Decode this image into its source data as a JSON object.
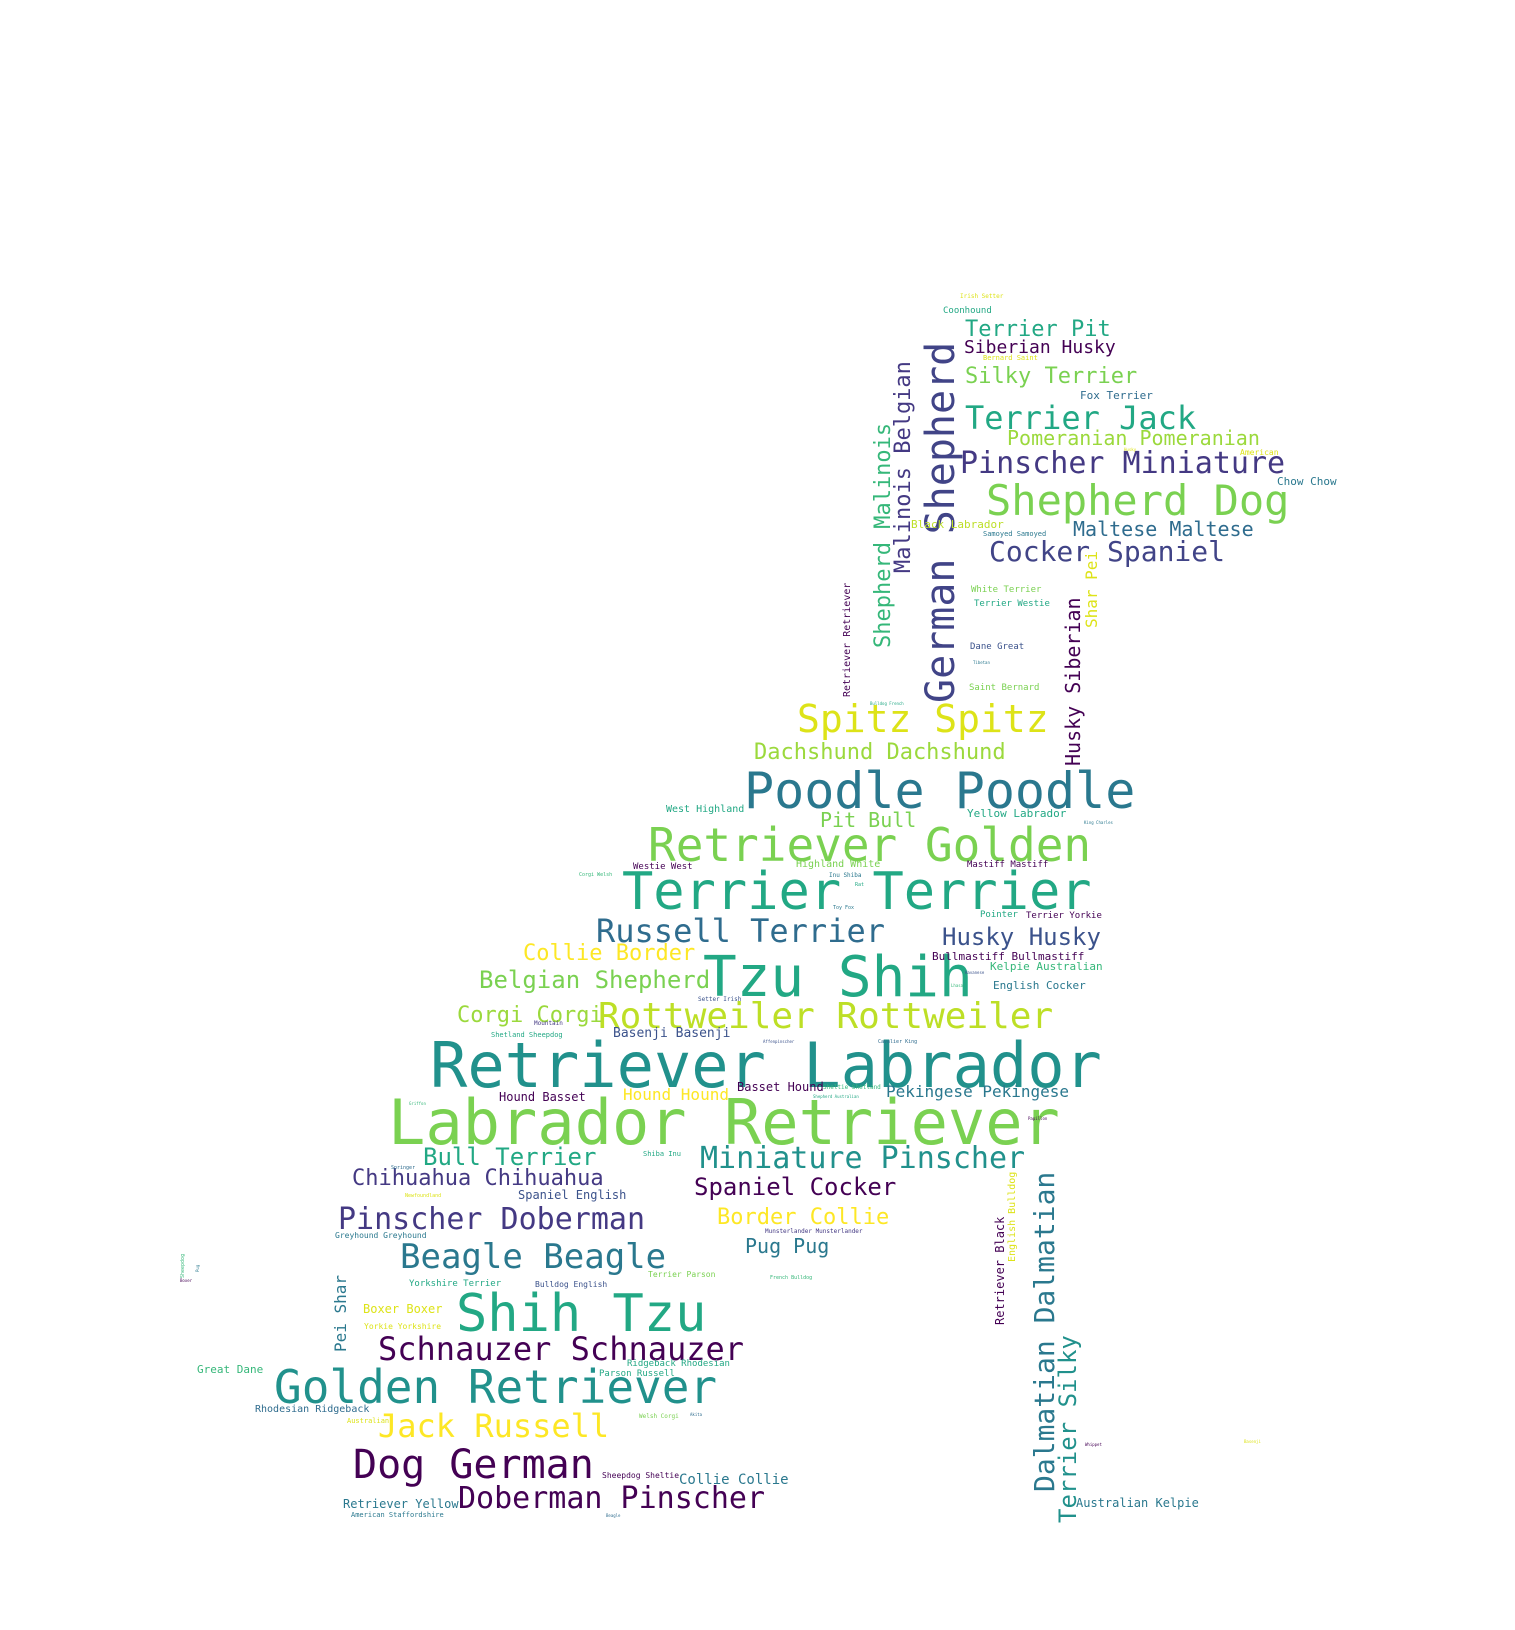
{
  "palette": {
    "dark_purple": "#440154",
    "indigo": "#482878",
    "navy": "#3e4a89",
    "steel": "#31688e",
    "teal": "#26828e",
    "sea": "#1f9e89",
    "green": "#35b779",
    "lime_green": "#6ece58",
    "light_lime": "#b5de2b",
    "yellow": "#fde725"
  },
  "words": [
    {
      "text": "Retriever Labrador",
      "color": "#21918c"
    },
    {
      "text": "Labrador Retriever",
      "color": "#7ad151"
    },
    {
      "text": "Tzu Shih",
      "color": "#22a884"
    },
    {
      "text": "Terrier Terrier",
      "color": "#22a884"
    },
    {
      "text": "Poodle Poodle",
      "color": "#2a788e"
    },
    {
      "text": "Retriever Golden",
      "color": "#7ad151"
    },
    {
      "text": "German Shepherd",
      "color": "#414487"
    },
    {
      "text": "Shih Tzu",
      "color": "#22a884"
    },
    {
      "text": "Golden Retriever",
      "color": "#21918c"
    },
    {
      "text": "Dog German",
      "color": "#440154"
    },
    {
      "text": "Rottweiler Rottweiler",
      "color": "#bddf26"
    },
    {
      "text": "Shepherd Dog",
      "color": "#7ad151"
    },
    {
      "text": "Spitz Spitz",
      "color": "#dde318"
    },
    {
      "text": "Russell Terrier",
      "color": "#2f6c8e"
    },
    {
      "text": "Jack Russell",
      "color": "#fde725"
    },
    {
      "text": "Schnauzer Schnauzer",
      "color": "#440154"
    },
    {
      "text": "Doberman Pinscher",
      "color": "#440154"
    },
    {
      "text": "Beagle Beagle",
      "color": "#2a788e"
    },
    {
      "text": "Pinscher Doberman",
      "color": "#443983"
    },
    {
      "text": "Miniature Pinscher",
      "color": "#21918c"
    },
    {
      "text": "Pinscher Miniature",
      "color": "#443983"
    },
    {
      "text": "Terrier Jack",
      "color": "#22a884"
    },
    {
      "text": "Dalmatian Dalmatian",
      "color": "#2a788e"
    },
    {
      "text": "Cocker Spaniel",
      "color": "#414487"
    },
    {
      "text": "Belgian Shepherd",
      "color": "#7ad151"
    },
    {
      "text": "Dachshund Dachshund",
      "color": "#9bd93c"
    },
    {
      "text": "Collie Border",
      "color": "#fde725"
    },
    {
      "text": "Husky Husky",
      "color": "#3b528b"
    },
    {
      "text": "Spaniel Cocker",
      "color": "#440154"
    },
    {
      "text": "Chihuahua Chihuahua",
      "color": "#443983"
    },
    {
      "text": "Bull Terrier",
      "color": "#22a884"
    },
    {
      "text": "Corgi Corgi",
      "color": "#9bd93c"
    },
    {
      "text": "Border Collie",
      "color": "#fde725"
    },
    {
      "text": "Malinois Belgian",
      "color": "#443983"
    },
    {
      "text": "Shepherd Malinois",
      "color": "#35b779"
    },
    {
      "text": "Terrier Silky",
      "color": "#21918c"
    },
    {
      "text": "Husky Siberian",
      "color": "#440154"
    },
    {
      "text": "Silky Terrier",
      "color": "#7ad151"
    },
    {
      "text": "Pomeranian Pomeranian",
      "color": "#9bd93c"
    },
    {
      "text": "Maltese Maltese",
      "color": "#2f6c8e"
    },
    {
      "text": "Terrier Pit",
      "color": "#22a884"
    },
    {
      "text": "Siberian Husky",
      "color": "#440154"
    },
    {
      "text": "Pug Pug",
      "color": "#2a788e"
    },
    {
      "text": "Pit Bull",
      "color": "#7ad151"
    },
    {
      "text": "Pekingese Pekingese",
      "color": "#2a788e"
    },
    {
      "text": "Hound Hound",
      "color": "#fde725"
    },
    {
      "text": "Pei Shar",
      "color": "#2a788e"
    },
    {
      "text": "Shar Pei",
      "color": "#dde318"
    },
    {
      "text": "Collie Collie",
      "color": "#2a788e"
    },
    {
      "text": "Basenji Basenji",
      "color": "#3b528b"
    },
    {
      "text": "Retriever Black",
      "color": "#440154"
    },
    {
      "text": "English Bulldog",
      "color": "#dde318"
    },
    {
      "text": "Spaniel English",
      "color": "#3b528b"
    },
    {
      "text": "Hound Basset",
      "color": "#440154"
    },
    {
      "text": "Basset Hound",
      "color": "#440154"
    },
    {
      "text": "Boxer Boxer",
      "color": "#dde318"
    },
    {
      "text": "Retriever Yellow",
      "color": "#2a788e"
    },
    {
      "text": "Australian Kelpie",
      "color": "#2a788e"
    },
    {
      "text": "Great Dane",
      "color": "#35b779"
    },
    {
      "text": "Rhodesian Ridgeback",
      "color": "#2f6c8e"
    },
    {
      "text": "Retriever Retriever",
      "color": "#440154"
    },
    {
      "text": "Yellow Labrador",
      "color": "#22a884"
    },
    {
      "text": "English Cocker",
      "color": "#2a788e"
    },
    {
      "text": "Kelpie Australian",
      "color": "#35b779"
    },
    {
      "text": "Bullmastiff Bullmastiff",
      "color": "#440154"
    },
    {
      "text": "Chow Chow",
      "color": "#2a788e"
    },
    {
      "text": "Fox Terrier",
      "color": "#2f6c8e"
    },
    {
      "text": "West Highland",
      "color": "#22a884"
    },
    {
      "text": "Coonhound",
      "color": "#22a884"
    },
    {
      "text": "Black Labrador",
      "color": "#bddf26"
    },
    {
      "text": "Dane Great",
      "color": "#3b528b"
    },
    {
      "text": "Saint Bernard",
      "color": "#7ad151"
    },
    {
      "text": "White Terrier",
      "color": "#7ad151"
    },
    {
      "text": "Terrier Westie",
      "color": "#22a884"
    },
    {
      "text": "Highland White",
      "color": "#7ad151"
    },
    {
      "text": "Mastiff Mastiff",
      "color": "#440154"
    },
    {
      "text": "Terrier Yorkie",
      "color": "#440154"
    },
    {
      "text": "Westie West",
      "color": "#440154"
    },
    {
      "text": "Pointer",
      "color": "#22a884"
    },
    {
      "text": "Greyhound Greyhound",
      "color": "#2a788e"
    },
    {
      "text": "Terrier Parson",
      "color": "#7ad151"
    },
    {
      "text": "Yorkshire Terrier",
      "color": "#22a884"
    },
    {
      "text": "Bulldog English",
      "color": "#3b528b"
    },
    {
      "text": "Yorkie Yorkshire",
      "color": "#dde318"
    },
    {
      "text": "Ridgeback Rhodesian",
      "color": "#22a884"
    },
    {
      "text": "Parson Russell",
      "color": "#22a884"
    },
    {
      "text": "Sheepdog Sheltie",
      "color": "#440154"
    },
    {
      "text": "American Staffordshire",
      "color": "#2a788e"
    },
    {
      "text": "Shetland Sheepdog",
      "color": "#22a884"
    },
    {
      "text": "Shiba Inu",
      "color": "#22a884"
    },
    {
      "text": "Munsterlander Munsterlander",
      "color": "#443983"
    },
    {
      "text": "Mountain",
      "color": "#443983"
    },
    {
      "text": "Samoyed Samoyed",
      "color": "#2a788e"
    },
    {
      "text": "Bernard Saint",
      "color": "#dde318"
    },
    {
      "text": "Irish Setter",
      "color": "#dde318"
    },
    {
      "text": "American",
      "color": "#dde318"
    },
    {
      "text": "Welsh Corgi",
      "color": "#7ad151"
    },
    {
      "text": "Australian",
      "color": "#dde318"
    },
    {
      "text": "Inu Shiba",
      "color": "#2a788e"
    },
    {
      "text": "Corgi Welsh",
      "color": "#35b779"
    },
    {
      "text": "Sheltie Shetland",
      "color": "#35b779"
    },
    {
      "text": "Setter Irish",
      "color": "#3b528b"
    },
    {
      "text": "Shepherd Australian",
      "color": "#22a884"
    },
    {
      "text": "Sheepdog",
      "color": "#35b779"
    },
    {
      "text": "Springer",
      "color": "#2f6c8e"
    },
    {
      "text": "Newfoundland",
      "color": "#dde318"
    },
    {
      "text": "Griffon",
      "color": "#35b779"
    },
    {
      "text": "French Bulldog",
      "color": "#35b779"
    },
    {
      "text": "Bulldog French",
      "color": "#22a884"
    },
    {
      "text": "Rat",
      "color": "#22a884"
    },
    {
      "text": "Toy Fox",
      "color": "#2a788e"
    },
    {
      "text": "Cavalier King",
      "color": "#2f6c8e"
    },
    {
      "text": "Affenpinscher",
      "color": "#3b528b"
    },
    {
      "text": "Papillon",
      "color": "#440154"
    },
    {
      "text": "Whippet",
      "color": "#440154"
    },
    {
      "text": "Basenji",
      "color": "#dde318"
    },
    {
      "text": "Tibetan",
      "color": "#2a788e"
    },
    {
      "text": "Havanese",
      "color": "#3b528b"
    },
    {
      "text": "King Charles",
      "color": "#2a788e"
    },
    {
      "text": "Akita",
      "color": "#2f6c8e"
    },
    {
      "text": "Beagle",
      "color": "#2f6c8e"
    },
    {
      "text": "Pug",
      "color": "#2a788e"
    },
    {
      "text": "Husky",
      "color": "#dde318"
    },
    {
      "text": "Lhasa",
      "color": "#35b779"
    },
    {
      "text": "Boxer",
      "color": "#440154"
    },
    {
      "text": "Collie",
      "color": "#440154"
    }
  ]
}
